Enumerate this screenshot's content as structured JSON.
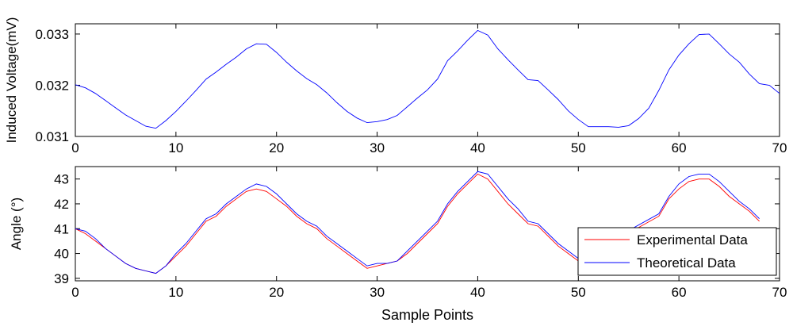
{
  "chart_data": [
    {
      "type": "line",
      "ylabel": "Induced Voltage(mV)",
      "xlabel": "",
      "xlim": [
        0,
        70
      ],
      "ylim": [
        0.031,
        0.0332
      ],
      "xticks": [
        0,
        10,
        20,
        30,
        40,
        50,
        60,
        70
      ],
      "yticks": [
        0.031,
        0.032,
        0.033
      ],
      "ytick_labels": [
        "0.031",
        "0.032",
        "0.033"
      ],
      "grid": false,
      "series": [
        {
          "color": "#0000ff",
          "x": [
            0,
            1,
            2,
            3,
            4,
            5,
            6,
            7,
            8,
            9,
            10,
            11,
            12,
            13,
            14,
            15,
            16,
            17,
            18,
            19,
            20,
            21,
            22,
            23,
            24,
            25,
            26,
            27,
            28,
            29,
            30,
            31,
            32,
            33,
            34,
            35,
            36,
            37,
            38,
            39,
            40,
            41,
            42,
            43,
            44,
            45,
            46,
            47,
            48,
            49,
            50,
            51,
            52,
            53,
            54,
            55,
            56,
            57,
            58,
            59,
            60,
            61,
            62,
            63,
            64,
            65,
            66,
            67,
            68,
            69,
            70
          ],
          "values": [
            0.03201,
            0.03195,
            0.03184,
            0.0317,
            0.03156,
            0.03142,
            0.03131,
            0.0312,
            0.03116,
            0.03131,
            0.03149,
            0.03169,
            0.0319,
            0.03212,
            0.03226,
            0.03241,
            0.03255,
            0.03271,
            0.03281,
            0.0328,
            0.03264,
            0.03245,
            0.03228,
            0.03213,
            0.03201,
            0.03185,
            0.03166,
            0.03149,
            0.03136,
            0.03127,
            0.03129,
            0.03133,
            0.03141,
            0.03158,
            0.03175,
            0.03191,
            0.03212,
            0.03248,
            0.03267,
            0.03288,
            0.03307,
            0.03298,
            0.03271,
            0.0325,
            0.0323,
            0.03211,
            0.03209,
            0.03191,
            0.03172,
            0.0315,
            0.03133,
            0.03119,
            0.03119,
            0.03119,
            0.03118,
            0.03121,
            0.03135,
            0.03155,
            0.0319,
            0.0323,
            0.03259,
            0.03281,
            0.03299,
            0.033,
            0.03281,
            0.03261,
            0.03245,
            0.03222,
            0.03203,
            0.032,
            0.03184
          ]
        }
      ]
    },
    {
      "type": "line",
      "ylabel": "Angle (°)",
      "xlabel": "Sample Points",
      "xlim": [
        0,
        70
      ],
      "ylim": [
        38.9,
        43.5
      ],
      "xticks": [
        0,
        10,
        20,
        30,
        40,
        50,
        60,
        70
      ],
      "yticks": [
        39,
        40,
        41,
        42,
        43
      ],
      "grid": false,
      "legend": {
        "location": "bottom-right",
        "entries": [
          "Experimental Data",
          "Theoretical Data"
        ]
      },
      "series": [
        {
          "name": "Experimental Data",
          "color": "#ff0000",
          "x": [
            0,
            1,
            2,
            3,
            4,
            5,
            6,
            7,
            8,
            9,
            10,
            11,
            12,
            13,
            14,
            15,
            16,
            17,
            18,
            19,
            20,
            21,
            22,
            23,
            24,
            25,
            26,
            27,
            28,
            29,
            30,
            31,
            32,
            33,
            34,
            35,
            36,
            37,
            38,
            39,
            40,
            41,
            42,
            43,
            44,
            45,
            46,
            47,
            48,
            49,
            50,
            58,
            59,
            60,
            61,
            62,
            63,
            64,
            65,
            66,
            67,
            68
          ],
          "values": [
            41.0,
            40.8,
            40.5,
            40.2,
            39.9,
            39.6,
            39.4,
            39.3,
            39.2,
            39.5,
            39.9,
            40.3,
            40.8,
            41.3,
            41.5,
            41.9,
            42.2,
            42.5,
            42.6,
            42.5,
            42.2,
            41.9,
            41.5,
            41.2,
            41.0,
            40.6,
            40.3,
            40.0,
            39.7,
            39.4,
            39.5,
            39.6,
            39.7,
            40.0,
            40.4,
            40.8,
            41.2,
            41.9,
            42.4,
            42.8,
            43.2,
            43.0,
            42.5,
            42.0,
            41.6,
            41.2,
            41.1,
            40.7,
            40.3,
            40.0,
            39.7,
            41.5,
            42.2,
            42.6,
            42.9,
            43.0,
            43.0,
            42.7,
            42.3,
            42.0,
            41.7,
            41.3
          ]
        },
        {
          "name": "Theoretical Data",
          "color": "#0000ff",
          "x": [
            0,
            1,
            2,
            3,
            4,
            5,
            6,
            7,
            8,
            9,
            10,
            11,
            12,
            13,
            14,
            15,
            16,
            17,
            18,
            19,
            20,
            21,
            22,
            23,
            24,
            25,
            26,
            27,
            28,
            29,
            30,
            31,
            32,
            33,
            34,
            35,
            36,
            37,
            38,
            39,
            40,
            41,
            42,
            43,
            44,
            45,
            46,
            47,
            48,
            49,
            50,
            58,
            59,
            60,
            61,
            62,
            63,
            64,
            65,
            66,
            67,
            68
          ],
          "values": [
            41.0,
            40.9,
            40.6,
            40.2,
            39.9,
            39.6,
            39.4,
            39.3,
            39.2,
            39.5,
            40.0,
            40.4,
            40.9,
            41.4,
            41.6,
            42.0,
            42.3,
            42.6,
            42.8,
            42.7,
            42.4,
            42.0,
            41.6,
            41.3,
            41.1,
            40.7,
            40.4,
            40.1,
            39.8,
            39.5,
            39.6,
            39.6,
            39.7,
            40.1,
            40.5,
            40.9,
            41.3,
            42.0,
            42.5,
            42.9,
            43.3,
            43.2,
            42.7,
            42.2,
            41.8,
            41.3,
            41.2,
            40.8,
            40.4,
            40.1,
            39.8,
            41.6,
            42.3,
            42.8,
            43.1,
            43.2,
            43.2,
            42.9,
            42.5,
            42.1,
            41.8,
            41.4
          ]
        }
      ]
    }
  ]
}
